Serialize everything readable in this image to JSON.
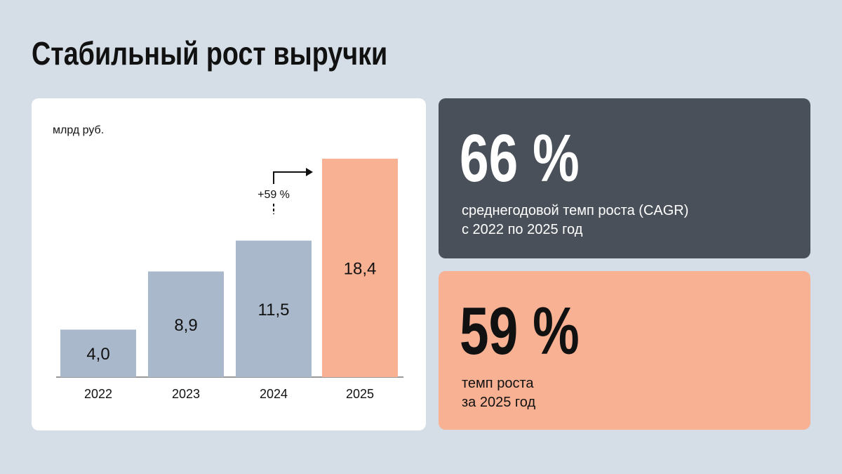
{
  "title": "Стабильный рост выручки",
  "chart_data": {
    "type": "bar",
    "unit_label": "млрд руб.",
    "categories": [
      "2022",
      "2023",
      "2024",
      "2025"
    ],
    "values": [
      4.0,
      8.9,
      11.5,
      18.4
    ],
    "value_labels": [
      "4,0",
      "8,9",
      "11,5",
      "18,4"
    ],
    "colors": [
      "#a9b8ca",
      "#a9b8ca",
      "#a9b8ca",
      "#f8b193"
    ],
    "annotation": "+59 %"
  },
  "cards": [
    {
      "value": "66 %",
      "lines": [
        "среднегодовой темп роста (CAGR)",
        "с 2022 по 2025 год"
      ],
      "color": "#4a5059",
      "text_color": "#ffffff"
    },
    {
      "value": "59 %",
      "lines": [
        "темп роста",
        "за 2025 год"
      ],
      "color": "#f8b193",
      "text_color": "#111111"
    }
  ]
}
